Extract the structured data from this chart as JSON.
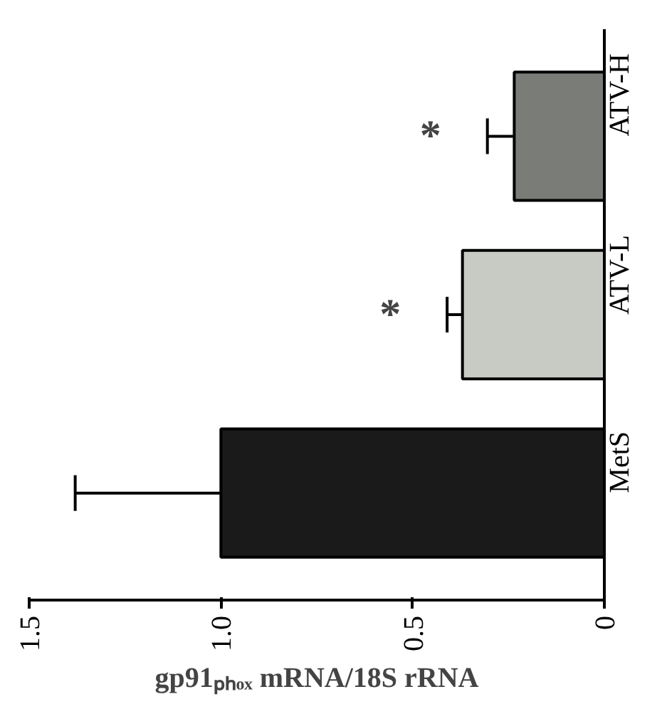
{
  "chart_data": {
    "type": "bar",
    "orientation": "horizontal",
    "xlabel": "gp91ₚₕₒₓ mRNA/18S rRNA",
    "categories": [
      "ATV-H",
      "ATV-L",
      "MetS"
    ],
    "values": [
      0.235,
      0.37,
      1.0
    ],
    "errors": [
      0.07,
      0.04,
      0.38
    ],
    "colors": [
      "#7a7c78",
      "#c8cac4",
      "#1a1a1a"
    ],
    "xlim": [
      1.5,
      0
    ],
    "xticks": [
      1.5,
      {
        "value": 1.0,
        "label": "1.0"
      },
      0.5,
      0
    ],
    "annotations": [
      "*",
      "*"
    ],
    "grid": false
  }
}
